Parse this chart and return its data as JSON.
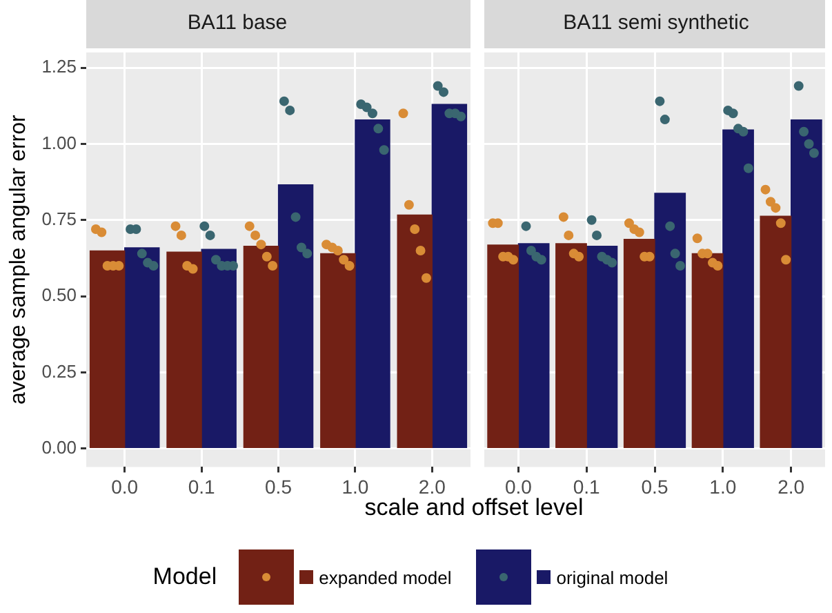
{
  "chart_data": [
    {
      "type": "bar",
      "title": "BA11 base",
      "xlabel": "scale and offset level",
      "ylabel": "average sample angular error",
      "legend": "bottom",
      "legend_title": "Model",
      "grid": true,
      "marker": "circle",
      "categories": [
        "0.0",
        "0.1",
        "0.5",
        "1.0",
        "2.0"
      ],
      "ylim": [
        -0.06,
        1.3
      ],
      "yticks": [
        {
          "value": 0,
          "label": "0.00"
        },
        {
          "value": 0.25,
          "label": "0.25"
        },
        {
          "value": 0.5,
          "label": "0.50"
        },
        {
          "value": 0.75,
          "label": "0.75"
        },
        {
          "value": 1,
          "label": "1.00"
        },
        {
          "value": 1.25,
          "label": "1.25"
        }
      ],
      "series": [
        {
          "name": "expanded model",
          "color": "#722115",
          "values": [
            0.649,
            0.645,
            0.664,
            0.64,
            0.767
          ]
        },
        {
          "name": "original model",
          "color": "#191966",
          "values": [
            0.659,
            0.654,
            0.866,
            1.079,
            1.13
          ]
        },
        {
          "type": "scatter",
          "color": "#d98c36",
          "x": [
            "0.0",
            "0.0",
            "0.0",
            "0.0",
            "0.0",
            "0.1",
            "0.1",
            "0.1",
            "0.1",
            "0.5",
            "0.5",
            "0.5",
            "0.5",
            "0.5",
            "1.0",
            "1.0",
            "1.0",
            "1.0",
            "1.0",
            "2.0",
            "2.0",
            "2.0",
            "2.0",
            "2.0"
          ],
          "values": [
            0.72,
            0.71,
            0.6,
            0.6,
            0.6,
            0.73,
            0.7,
            0.6,
            0.59,
            0.73,
            0.7,
            0.67,
            0.63,
            0.6,
            0.67,
            0.66,
            0.65,
            0.62,
            0.6,
            1.1,
            0.8,
            0.72,
            0.65,
            0.56
          ]
        },
        {
          "type": "scatter",
          "color": "#3a6670",
          "x": [
            "0.0",
            "0.0",
            "0.0",
            "0.0",
            "0.0",
            "0.1",
            "0.1",
            "0.1",
            "0.1",
            "0.1",
            "0.1",
            "0.5",
            "0.5",
            "0.5",
            "0.5",
            "0.5",
            "1.0",
            "1.0",
            "1.0",
            "1.0",
            "1.0",
            "2.0",
            "2.0",
            "2.0",
            "2.0",
            "2.0"
          ],
          "values": [
            0.72,
            0.72,
            0.64,
            0.61,
            0.6,
            0.73,
            0.7,
            0.62,
            0.6,
            0.6,
            0.6,
            1.14,
            1.11,
            0.76,
            0.66,
            0.64,
            1.13,
            1.12,
            1.1,
            1.05,
            0.98,
            1.19,
            1.17,
            1.1,
            1.1,
            1.09
          ]
        }
      ]
    },
    {
      "type": "bar",
      "title": "BA11 semi synthetic",
      "grid": true,
      "marker": "circle",
      "tick_labels": "x",
      "categories": [
        "0.0",
        "0.1",
        "0.5",
        "1.0",
        "2.0"
      ],
      "ylim": [
        -0.06,
        1.3
      ],
      "yticks": [
        {
          "value": 0,
          "label": null
        },
        {
          "value": 0.25,
          "label": null
        },
        {
          "value": 0.5,
          "label": null
        },
        {
          "value": 0.75,
          "label": null
        },
        {
          "value": 1,
          "label": null
        },
        {
          "value": 1.25,
          "label": null
        }
      ],
      "series": [
        {
          "color": "#722115",
          "values": [
            0.668,
            0.673,
            0.687,
            0.64,
            0.763
          ]
        },
        {
          "color": "#191966",
          "values": [
            0.673,
            0.664,
            0.838,
            1.046,
            1.079
          ]
        },
        {
          "type": "scatter",
          "color": "#d98c36",
          "x": [
            "0.0",
            "0.0",
            "0.0",
            "0.0",
            "0.0",
            "0.1",
            "0.1",
            "0.1",
            "0.1",
            "0.5",
            "0.5",
            "0.5",
            "0.5",
            "0.5",
            "1.0",
            "1.0",
            "1.0",
            "1.0",
            "1.0",
            "2.0",
            "2.0",
            "2.0",
            "2.0",
            "2.0"
          ],
          "values": [
            0.74,
            0.74,
            0.63,
            0.63,
            0.62,
            0.76,
            0.7,
            0.64,
            0.63,
            0.74,
            0.72,
            0.71,
            0.63,
            0.63,
            0.69,
            0.64,
            0.64,
            0.61,
            0.6,
            0.85,
            0.81,
            0.79,
            0.74,
            0.62
          ]
        },
        {
          "type": "scatter",
          "color": "#3a6670",
          "x": [
            "0.0",
            "0.0",
            "0.0",
            "0.0",
            "0.1",
            "0.1",
            "0.1",
            "0.1",
            "0.1",
            "0.5",
            "0.5",
            "0.5",
            "0.5",
            "0.5",
            "1.0",
            "1.0",
            "1.0",
            "1.0",
            "1.0",
            "2.0",
            "2.0",
            "2.0",
            "2.0"
          ],
          "values": [
            0.73,
            0.65,
            0.63,
            0.62,
            0.75,
            0.7,
            0.63,
            0.62,
            0.61,
            1.14,
            1.08,
            0.73,
            0.64,
            0.6,
            1.11,
            1.1,
            1.05,
            1.04,
            0.92,
            1.19,
            1.04,
            1.0,
            0.97
          ]
        }
      ]
    }
  ]
}
